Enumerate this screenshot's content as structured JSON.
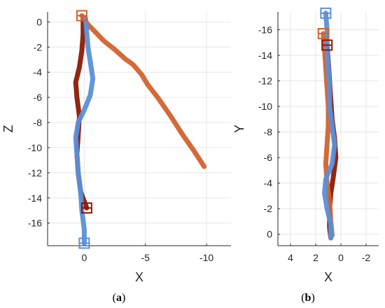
{
  "chart_data": [
    {
      "type": "line",
      "panel": "(a)",
      "caption_letter": "a",
      "xlabel": "X",
      "ylabel": "Z",
      "xlim": [
        3,
        -12
      ],
      "ylim": [
        -17.8,
        0.8
      ],
      "xticks": [
        0,
        -5,
        -10
      ],
      "yticks": [
        0,
        -2,
        -4,
        -6,
        -8,
        -10,
        -12,
        -14,
        -16
      ],
      "grid": true,
      "series": [
        {
          "color": "#8b1a05",
          "points": [
            [
              -0.2,
              -14.8
            ],
            [
              0.3,
              -13.5
            ],
            [
              0.5,
              -12
            ],
            [
              0.6,
              -10.5
            ],
            [
              0.5,
              -9
            ],
            [
              0.4,
              -7.5
            ],
            [
              0.6,
              -6
            ],
            [
              0.7,
              -4.8
            ],
            [
              0.4,
              -3.6
            ],
            [
              0.2,
              -2.3
            ],
            [
              0.1,
              -1
            ],
            [
              0.1,
              0.2
            ]
          ]
        },
        {
          "color": "#d2622c",
          "points": [
            [
              0.2,
              0.5
            ],
            [
              -0.3,
              -0.2
            ],
            [
              -0.9,
              -0.8
            ],
            [
              -1.6,
              -1.5
            ],
            [
              -2.5,
              -2.2
            ],
            [
              -3.3,
              -2.9
            ],
            [
              -4.0,
              -3.4
            ],
            [
              -4.7,
              -4.2
            ],
            [
              -5.2,
              -5.0
            ],
            [
              -6.0,
              -6.0
            ],
            [
              -7.0,
              -7.4
            ],
            [
              -8.0,
              -8.9
            ],
            [
              -9.0,
              -10.3
            ],
            [
              -9.8,
              -11.5
            ]
          ]
        },
        {
          "color": "#5b8fd9",
          "points": [
            [
              0.0,
              -17.6
            ],
            [
              0.0,
              -16.5
            ],
            [
              0.2,
              -15
            ],
            [
              0.3,
              -13.5
            ],
            [
              0.5,
              -12
            ],
            [
              0.6,
              -10.5
            ],
            [
              0.7,
              -9.2
            ],
            [
              0.5,
              -8
            ],
            [
              0.0,
              -7
            ],
            [
              -0.5,
              -5.8
            ],
            [
              -0.7,
              -4.5
            ],
            [
              -0.5,
              -3.2
            ],
            [
              -0.3,
              -2.0
            ],
            [
              -0.2,
              -0.8
            ],
            [
              -0.1,
              0.3
            ]
          ]
        }
      ]
    },
    {
      "type": "line",
      "panel": "(b)",
      "caption_letter": "b",
      "xlabel": "X",
      "ylabel": "Y",
      "xlim": [
        5,
        -3
      ],
      "ylim": [
        0.9,
        -17.4
      ],
      "xticks": [
        4,
        2,
        0,
        -2
      ],
      "yticks": [
        -16,
        -14,
        -12,
        -10,
        -8,
        -6,
        -4,
        -2,
        0
      ],
      "grid": true,
      "series": [
        {
          "color": "#8b1a05",
          "points": [
            [
              1.1,
              -14.8
            ],
            [
              1.0,
              -13.5
            ],
            [
              0.9,
              -12
            ],
            [
              0.8,
              -10.5
            ],
            [
              0.7,
              -9
            ],
            [
              0.5,
              -7.5
            ],
            [
              0.4,
              -6
            ],
            [
              0.6,
              -4.5
            ],
            [
              0.8,
              -3.2
            ],
            [
              0.9,
              -2
            ],
            [
              0.9,
              -0.5
            ],
            [
              0.8,
              0.3
            ]
          ]
        },
        {
          "color": "#d2622c",
          "points": [
            [
              1.4,
              -15.7
            ],
            [
              1.3,
              -14.5
            ],
            [
              1.2,
              -13
            ],
            [
              1.1,
              -11.5
            ],
            [
              1.0,
              -10
            ],
            [
              1.0,
              -8.5
            ],
            [
              1.1,
              -7
            ],
            [
              1.2,
              -5.5
            ],
            [
              1.1,
              -4
            ],
            [
              0.9,
              -2.5
            ],
            [
              0.8,
              -1
            ],
            [
              0.7,
              0.1
            ]
          ]
        },
        {
          "color": "#5b8fd9",
          "points": [
            [
              1.2,
              -17.3
            ],
            [
              1.1,
              -16
            ],
            [
              1.1,
              -14.5
            ],
            [
              1.0,
              -13
            ],
            [
              0.9,
              -11.5
            ],
            [
              0.9,
              -10
            ],
            [
              0.7,
              -8.5
            ],
            [
              0.5,
              -7
            ],
            [
              0.7,
              -5.5
            ],
            [
              1.2,
              -4.3
            ],
            [
              1.3,
              -3.2
            ],
            [
              1.1,
              -2
            ],
            [
              0.8,
              -0.8
            ],
            [
              0.8,
              0.3
            ]
          ]
        }
      ]
    }
  ]
}
